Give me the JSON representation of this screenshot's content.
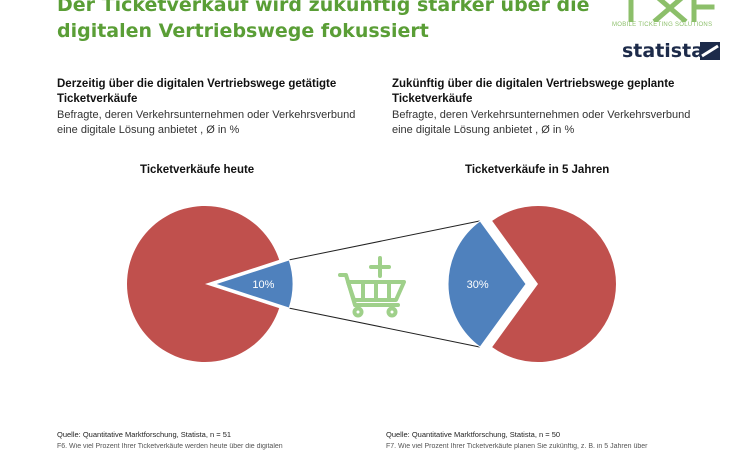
{
  "header": {
    "title_line1": "Der Ticketverkauf wird zukünftig stärker über die",
    "title_line2": "digitalen Vertriebswege fokussiert"
  },
  "logos": {
    "txf_tagline": "MOBILE TICKETING SOLUTIONS",
    "statista": "statista"
  },
  "left_panel": {
    "heading": "Derzeitig über die digitalen Vertriebswege getätigte Ticketverkäufe",
    "subtitle": "Befragte, deren Verkehrsunternehmen oder Verkehrsverbund eine digitale Lösung anbietet , Ø in %"
  },
  "right_panel": {
    "heading": "Zukünftig über die digitalen Vertriebswege geplante Ticketverkäufe",
    "subtitle": "Befragte, deren Verkehrsunternehmen oder Verkehrsverbund eine digitale Lösung anbietet , Ø in %"
  },
  "footer": {
    "source_left": "Quelle: Quantitative Marktforschung, Statista, n = 51",
    "source_right": "Quelle: Quantitative Marktforschung, Statista, n = 50",
    "note_left": "F6. Wie viel Prozent Ihrer Ticketverkäufe werden heute über die digitalen",
    "note_right": "F7. Wie viel Prozent Ihrer Ticketverkäufe planen Sie zukünftig, z. B. in 5 Jahren über"
  },
  "icons": {
    "cart": "shopping-cart-plus-icon"
  },
  "colors": {
    "title": "#5a9e36",
    "digital": "#4f81bd",
    "other": "#c0504d",
    "cart": "#9fd08a"
  },
  "chart_data": [
    {
      "type": "pie",
      "title": "Ticketverkäufe heute",
      "slices": [
        {
          "label": "10%",
          "value": 10
        },
        {
          "label": "",
          "value": 90
        }
      ]
    },
    {
      "type": "pie",
      "title": "Ticketverkäufe in 5 Jahren",
      "slices": [
        {
          "label": "30%",
          "value": 30
        },
        {
          "label": "",
          "value": 70
        }
      ]
    }
  ]
}
